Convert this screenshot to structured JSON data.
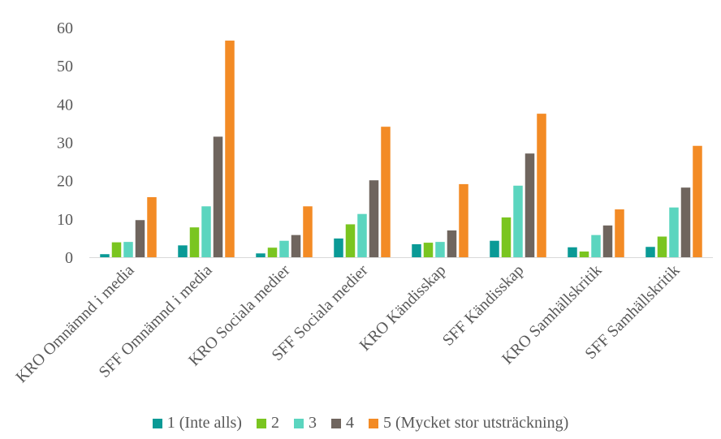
{
  "chart_data": {
    "type": "bar",
    "categories": [
      "KRO Omnämnd i media",
      "SFF Omnämnd i media",
      "KRO Sociala medier",
      "SFF Sociala medier",
      "KRO Kändisskap",
      "SFF Kändisskap",
      "KRO Samhällskritik",
      "SFF Samhällskritik"
    ],
    "series": [
      {
        "name": "1 (Inte alls)",
        "color": "#0a9a96",
        "values": [
          0.8,
          3.1,
          1.0,
          4.9,
          3.4,
          4.3,
          2.6,
          2.7
        ]
      },
      {
        "name": "2",
        "color": "#7ac520",
        "values": [
          3.9,
          7.8,
          2.5,
          8.6,
          3.8,
          10.4,
          1.5,
          5.4
        ]
      },
      {
        "name": "3",
        "color": "#5bd5bf",
        "values": [
          4.0,
          13.3,
          4.3,
          11.3,
          4.0,
          18.7,
          5.8,
          13.0
        ]
      },
      {
        "name": "4",
        "color": "#6f655e",
        "values": [
          9.7,
          31.5,
          5.8,
          20.1,
          7.0,
          27.1,
          8.3,
          18.2
        ]
      },
      {
        "name": "5 (Mycket stor utsträckning)",
        "color": "#f38b25",
        "values": [
          15.7,
          56.6,
          13.3,
          34.1,
          19.1,
          37.5,
          12.5,
          29.1
        ]
      }
    ],
    "ylim": [
      0,
      60
    ],
    "yticks": [
      0,
      10,
      20,
      30,
      40,
      50,
      60
    ],
    "grid": false,
    "legend_position": "bottom"
  }
}
